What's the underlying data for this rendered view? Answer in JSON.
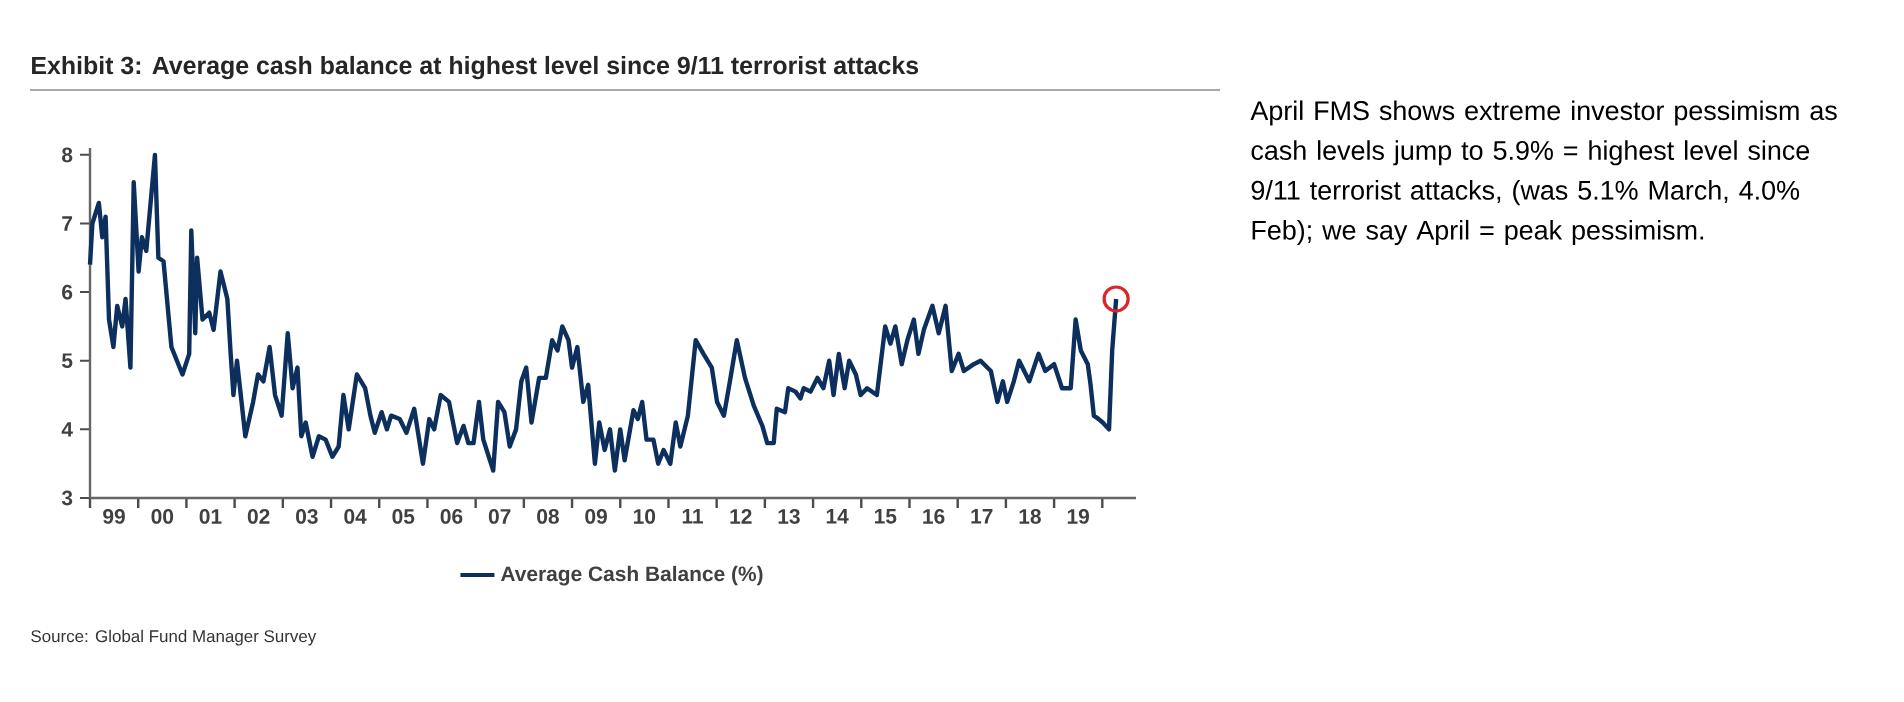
{
  "chart_data": {
    "type": "line",
    "title": "Exhibit 3: Average cash balance at highest level since 9/11 terrorist attacks",
    "annotations": [
      "April FMS shows extreme investor pessimism as cash levels jump to 5.9% = highest level since 9/11 terrorist attacks, (was 5.1% March, 4.0% Feb); we say April = peak pessimism.",
      "Source: Global Fund Manager Survey"
    ],
    "xlim": [
      "1999-01-01",
      "2020-09-13"
    ],
    "ylim": [
      3,
      8.1
    ],
    "xticks": [
      {
        "value": "1999-01-01",
        "label": null
      },
      {
        "value": "1999-07-02",
        "label": "99"
      },
      {
        "value": "2000-01-01",
        "label": null
      },
      {
        "value": "2000-07-02",
        "label": "00"
      },
      {
        "value": "2001-01-01",
        "label": null
      },
      {
        "value": "2001-07-02",
        "label": "01"
      },
      {
        "value": "2002-01-01",
        "label": null
      },
      {
        "value": "2002-07-02",
        "label": "02"
      },
      {
        "value": "2003-01-01",
        "label": null
      },
      {
        "value": "2003-07-02",
        "label": "03"
      },
      {
        "value": "2004-01-01",
        "label": null
      },
      {
        "value": "2004-07-02",
        "label": "04"
      },
      {
        "value": "2005-01-01",
        "label": null
      },
      {
        "value": "2005-07-02",
        "label": "05"
      },
      {
        "value": "2006-01-01",
        "label": null
      },
      {
        "value": "2006-07-02",
        "label": "06"
      },
      {
        "value": "2007-01-01",
        "label": null
      },
      {
        "value": "2007-07-02",
        "label": "07"
      },
      {
        "value": "2008-01-01",
        "label": null
      },
      {
        "value": "2008-07-02",
        "label": "08"
      },
      {
        "value": "2009-01-01",
        "label": null
      },
      {
        "value": "2009-07-02",
        "label": "09"
      },
      {
        "value": "2010-01-01",
        "label": null
      },
      {
        "value": "2010-07-02",
        "label": "10"
      },
      {
        "value": "2011-01-01",
        "label": null
      },
      {
        "value": "2011-07-02",
        "label": "11"
      },
      {
        "value": "2012-01-01",
        "label": null
      },
      {
        "value": "2012-07-02",
        "label": "12"
      },
      {
        "value": "2013-01-01",
        "label": null
      },
      {
        "value": "2013-07-02",
        "label": "13"
      },
      {
        "value": "2014-01-01",
        "label": null
      },
      {
        "value": "2014-07-02",
        "label": "14"
      },
      {
        "value": "2015-01-01",
        "label": null
      },
      {
        "value": "2015-07-02",
        "label": "15"
      },
      {
        "value": "2016-01-01",
        "label": null
      },
      {
        "value": "2016-07-02",
        "label": "16"
      },
      {
        "value": "2017-01-01",
        "label": null
      },
      {
        "value": "2017-07-02",
        "label": "17"
      },
      {
        "value": "2018-01-01",
        "label": null
      },
      {
        "value": "2018-07-02",
        "label": "18"
      },
      {
        "value": "2019-01-01",
        "label": null
      },
      {
        "value": "2019-07-02",
        "label": "19"
      },
      {
        "value": "2020-01-01",
        "label": null
      }
    ],
    "yticks": [
      3,
      4,
      5,
      6,
      7,
      8
    ],
    "grid": false,
    "legend": "bottom",
    "series": [
      {
        "name": "Average Cash Balance (%)",
        "color": "#0c2f5e",
        "x": [
          "1999-01-01",
          "1999-01-19",
          "1999-03-09",
          "1999-04-04",
          "1999-04-29",
          "1999-05-25",
          "1999-06-27",
          "1999-07-26",
          "1999-09-02",
          "1999-09-27",
          "1999-11-03",
          "1999-11-28",
          "2000-01-04",
          "2000-01-29",
          "2000-03-02",
          "2000-05-07",
          "2000-06-02",
          "2000-07-11",
          "2000-09-09",
          "2000-12-02",
          "2001-01-22",
          "2001-02-07",
          "2001-03-09",
          "2001-03-23",
          "2001-05-03",
          "2001-06-23",
          "2001-07-26",
          "2001-09-16",
          "2001-11-07",
          "2001-12-02",
          "2001-12-23",
          "2002-01-19",
          "2002-03-23",
          "2002-05-21",
          "2002-06-27",
          "2002-08-07",
          "2002-09-23",
          "2002-11-03",
          "2002-12-23",
          "2003-02-07",
          "2003-03-16",
          "2003-04-22",
          "2003-05-21",
          "2003-06-23",
          "2003-08-14",
          "2003-10-01",
          "2003-11-21",
          "2004-01-11",
          "2004-02-28",
          "2004-04-04",
          "2004-05-14",
          "2004-07-15",
          "2004-09-16",
          "2004-10-26",
          "2004-11-28",
          "2005-01-19",
          "2005-02-28",
          "2005-04-01",
          "2005-06-05",
          "2005-07-26",
          "2005-09-23",
          "2005-11-28",
          "2006-01-15",
          "2006-02-21",
          "2006-04-11",
          "2006-06-13",
          "2006-08-14",
          "2006-10-01",
          "2006-11-07",
          "2006-12-16",
          "2007-01-26",
          "2007-02-28",
          "2007-05-14",
          "2007-06-20",
          "2007-08-07",
          "2007-09-16",
          "2007-11-03",
          "2007-12-13",
          "2008-01-19",
          "2008-02-28",
          "2008-04-26",
          "2008-06-16",
          "2008-08-03",
          "2008-09-13",
          "2008-10-19",
          "2008-12-05",
          "2009-01-01",
          "2009-02-10",
          "2009-03-27",
          "2009-05-03",
          "2009-06-23",
          "2009-07-26",
          "2009-09-05",
          "2009-10-15",
          "2009-11-21",
          "2010-01-01",
          "2010-02-03",
          "2010-04-11",
          "2010-05-14",
          "2010-06-16",
          "2010-07-19",
          "2010-09-09",
          "2010-10-15",
          "2010-11-25",
          "2011-01-15",
          "2011-02-25",
          "2011-04-01",
          "2011-05-28",
          "2011-07-26",
          "2011-09-23",
          "2011-11-25",
          "2012-01-04",
          "2012-02-25",
          "2012-04-15",
          "2012-06-02",
          "2012-08-03",
          "2012-10-08",
          "2012-12-13",
          "2013-01-19",
          "2013-03-09",
          "2013-04-01",
          "2013-06-02",
          "2013-06-27",
          "2013-08-21",
          "2013-09-27",
          "2013-10-22",
          "2013-12-13",
          "2014-02-03",
          "2014-03-20",
          "2014-05-03",
          "2014-06-05",
          "2014-07-15",
          "2014-08-28",
          "2014-10-01",
          "2014-11-21",
          "2014-12-27",
          "2015-02-14",
          "2015-04-29",
          "2015-07-01",
          "2015-08-10",
          "2015-09-16",
          "2015-11-03",
          "2015-12-16",
          "2016-02-03",
          "2016-03-09",
          "2016-04-19",
          "2016-06-23",
          "2016-08-10",
          "2016-10-01",
          "2016-11-17",
          "2017-01-08",
          "2017-02-17",
          "2017-05-03",
          "2017-06-23",
          "2017-09-09",
          "2017-10-29",
          "2017-12-09",
          "2018-01-11",
          "2018-03-02",
          "2018-04-11",
          "2018-06-27",
          "2018-09-05",
          "2018-10-26",
          "2019-01-01",
          "2019-03-02",
          "2019-05-07",
          "2019-06-13",
          "2019-07-22",
          "2019-09-13",
          "2019-10-04",
          "2019-10-29",
          "2019-12-05",
          "2020-01-04",
          "2020-02-21",
          "2020-03-16",
          "2020-04-15"
        ],
        "values": [
          6.4,
          7.0,
          7.3,
          6.8,
          7.1,
          5.6,
          5.2,
          5.8,
          5.5,
          5.9,
          4.9,
          7.6,
          6.3,
          6.8,
          6.6,
          8.0,
          6.5,
          6.45,
          5.2,
          4.8,
          5.1,
          6.9,
          5.4,
          6.5,
          5.6,
          5.7,
          5.45,
          6.3,
          5.9,
          5.1,
          4.5,
          5.0,
          3.9,
          4.4,
          4.8,
          4.7,
          5.2,
          4.5,
          4.2,
          5.4,
          4.6,
          4.9,
          3.9,
          4.1,
          3.6,
          3.9,
          3.85,
          3.6,
          3.75,
          4.5,
          4.0,
          4.8,
          4.6,
          4.2,
          3.95,
          4.25,
          4.0,
          4.2,
          4.15,
          3.95,
          4.3,
          3.5,
          4.15,
          4.0,
          4.5,
          4.4,
          3.8,
          4.05,
          3.8,
          3.8,
          4.4,
          3.85,
          3.4,
          4.4,
          4.25,
          3.75,
          4.0,
          4.7,
          4.9,
          4.1,
          4.75,
          4.75,
          5.3,
          5.15,
          5.5,
          5.3,
          4.9,
          5.2,
          4.4,
          4.65,
          3.5,
          4.1,
          3.7,
          4.0,
          3.4,
          4.0,
          3.55,
          4.28,
          4.15,
          4.4,
          3.85,
          3.85,
          3.5,
          3.7,
          3.5,
          4.1,
          3.75,
          4.2,
          5.3,
          5.1,
          4.9,
          4.4,
          4.2,
          4.75,
          5.3,
          4.75,
          4.35,
          4.05,
          3.8,
          3.8,
          4.3,
          4.25,
          4.6,
          4.55,
          4.45,
          4.6,
          4.55,
          4.75,
          4.6,
          5.0,
          4.5,
          5.1,
          4.6,
          5.0,
          4.8,
          4.5,
          4.6,
          4.5,
          5.5,
          5.25,
          5.5,
          4.95,
          5.3,
          5.6,
          5.1,
          5.45,
          5.8,
          5.4,
          5.8,
          4.85,
          5.1,
          4.85,
          4.95,
          5.0,
          4.85,
          4.4,
          4.7,
          4.4,
          4.7,
          5.0,
          4.7,
          5.1,
          4.85,
          4.95,
          4.6,
          4.6,
          5.6,
          5.15,
          4.95,
          4.65,
          4.2,
          4.15,
          4.1,
          4.0,
          5.15,
          5.9
        ]
      },
      {
        "type": "scatter",
        "color": "#d9262b",
        "marker": "circle",
        "x": [
          "2020-04-15"
        ],
        "values": [
          5.9
        ]
      }
    ]
  }
}
